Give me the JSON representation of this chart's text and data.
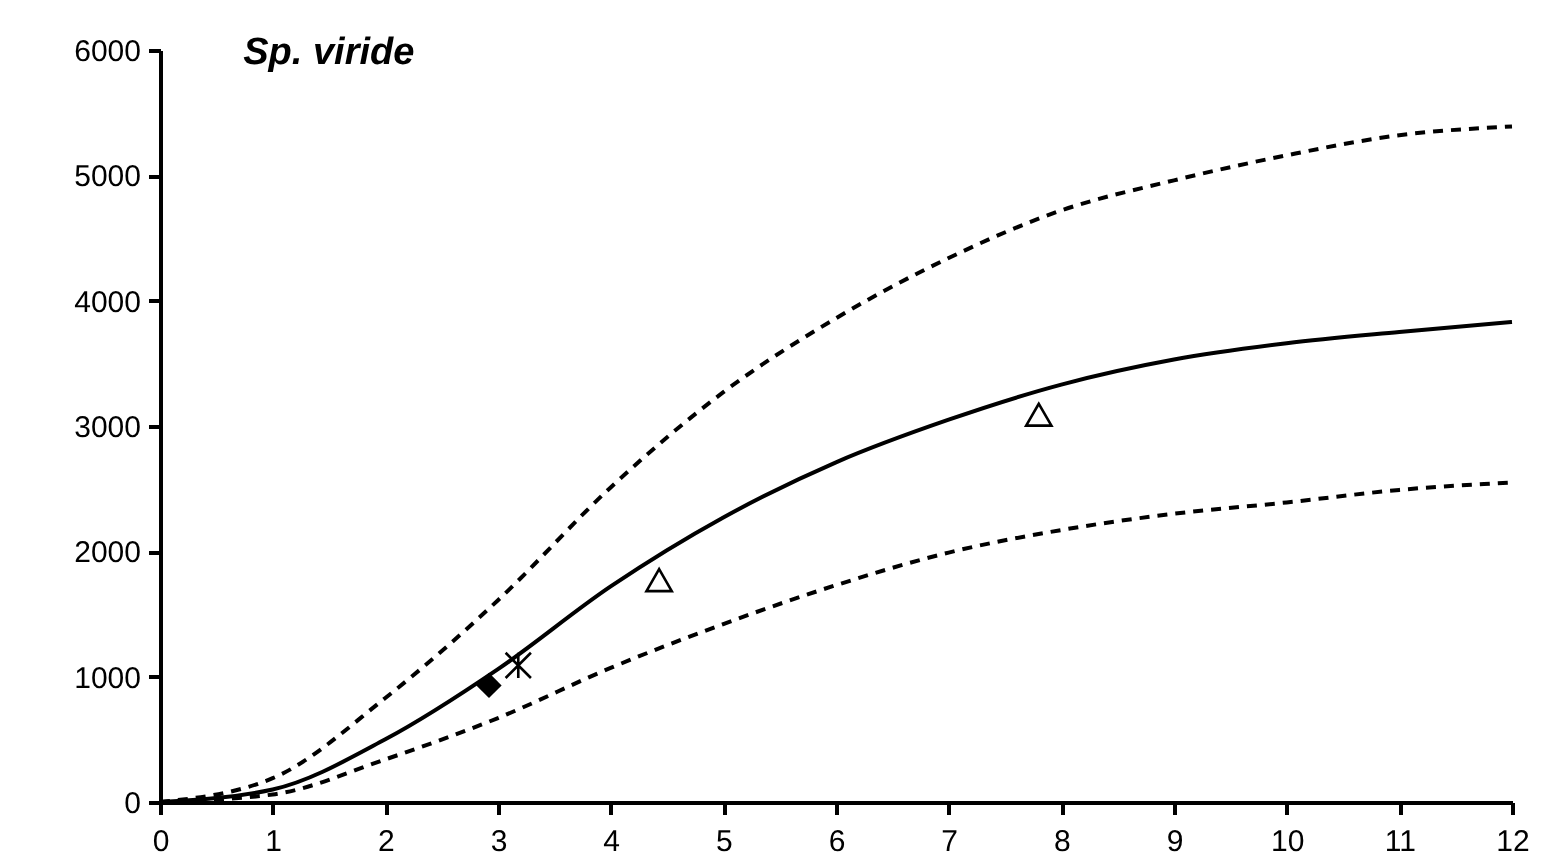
{
  "chart_data": {
    "type": "line",
    "title": "Sp. viride",
    "x": [
      0,
      1,
      2,
      3,
      4,
      5,
      6,
      7,
      8,
      9,
      10,
      11,
      12
    ],
    "xlim": [
      0,
      12
    ],
    "xticks": [
      0,
      1,
      2,
      3,
      4,
      5,
      6,
      7,
      8,
      9,
      10,
      11,
      12
    ],
    "ylim": [
      0,
      6000
    ],
    "yticks": [
      0,
      1000,
      2000,
      3000,
      4000,
      5000,
      6000
    ],
    "grid": false,
    "series": [
      {
        "color": "#000000",
        "line_style": "dashed",
        "marker": "none",
        "values": [
          0,
          190,
          830,
          1610,
          2510,
          3270,
          3860,
          4340,
          4720,
          4960,
          5160,
          5320,
          5390
        ]
      },
      {
        "color": "#000000",
        "line_style": "solid",
        "marker": "none",
        "values": [
          0,
          100,
          500,
          1060,
          1720,
          2270,
          2710,
          3050,
          3330,
          3530,
          3660,
          3750,
          3830
        ]
      },
      {
        "color": "#000000",
        "line_style": "dashed",
        "marker": "none",
        "values": [
          0,
          60,
          340,
          670,
          1070,
          1420,
          1730,
          1990,
          2170,
          2300,
          2390,
          2490,
          2550
        ]
      },
      {
        "type": "scatter",
        "color": "#000000",
        "marker": "diamond",
        "x": [
          2.92
        ],
        "values": [
          930
        ]
      },
      {
        "type": "scatter",
        "color": "#000000",
        "marker": "cross",
        "x": [
          3.18
        ],
        "values": [
          1090
        ]
      },
      {
        "type": "scatter",
        "color": "#000000",
        "marker": "triangle",
        "x": [
          4.43,
          7.8
        ],
        "values": [
          1770,
          3090
        ]
      }
    ]
  }
}
